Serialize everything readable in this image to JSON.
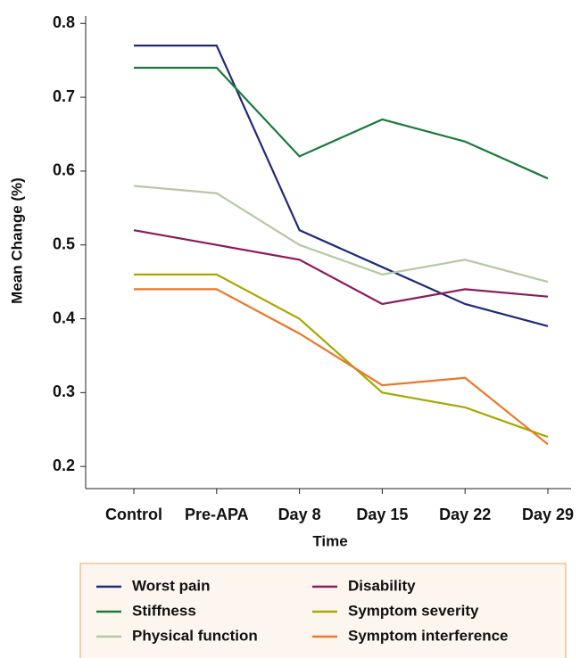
{
  "chart_data": {
    "type": "line",
    "x_label": "Time",
    "y_label": "Mean Change (%)",
    "categories": [
      "Control",
      "Pre-APA",
      "Day 8",
      "Day 15",
      "Day 22",
      "Day 29"
    ],
    "series": [
      {
        "name": "Worst pain",
        "color": "#1f2a7a",
        "values": [
          0.77,
          0.77,
          0.52,
          0.47,
          0.42,
          0.39
        ]
      },
      {
        "name": "Disability",
        "color": "#8b1a5a",
        "values": [
          0.52,
          0.5,
          0.48,
          0.42,
          0.44,
          0.43
        ]
      },
      {
        "name": "Stiffness",
        "color": "#1a7a3a",
        "values": [
          0.74,
          0.74,
          0.62,
          0.67,
          0.64,
          0.59
        ]
      },
      {
        "name": "Symptom severity",
        "color": "#a8a800",
        "values": [
          0.46,
          0.46,
          0.4,
          0.3,
          0.28,
          0.24
        ]
      },
      {
        "name": "Physical function",
        "color": "#b5c9a3",
        "values": [
          0.58,
          0.57,
          0.5,
          0.46,
          0.48,
          0.45
        ]
      },
      {
        "name": "Symptom interference",
        "color": "#e8782a",
        "values": [
          0.44,
          0.44,
          0.38,
          0.31,
          0.32,
          0.23
        ]
      }
    ],
    "ylim": [
      0.17,
      0.81
    ],
    "yticks": [
      0.2,
      0.3,
      0.4,
      0.5,
      0.6,
      0.7,
      0.8
    ],
    "grid": false
  }
}
